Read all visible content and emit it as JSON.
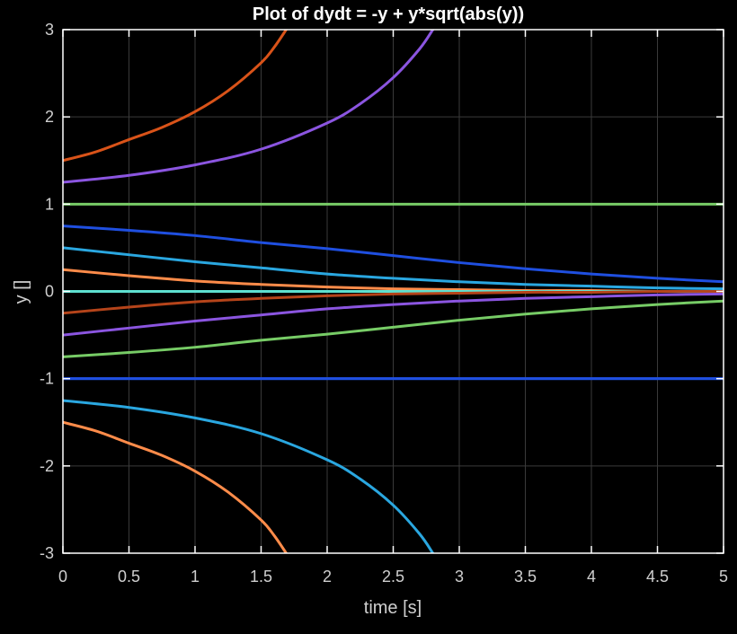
{
  "chart_data": {
    "type": "line",
    "title": "Plot of dydt = -y + y*sqrt(abs(y))",
    "xlabel": "time [s]",
    "ylabel": "y []",
    "xlim": [
      0,
      5
    ],
    "ylim": [
      -3,
      3
    ],
    "xticks": [
      "0",
      "0.5",
      "1",
      "1.5",
      "2",
      "2.5",
      "3",
      "3.5",
      "4",
      "4.5",
      "5"
    ],
    "yticks": [
      "3",
      "2",
      "1",
      "0",
      "-1",
      "-2",
      "-3"
    ],
    "grid": true,
    "background": "#000000",
    "axis_color": "#ffffff",
    "tick_color": "#cfcfcf",
    "grid_color": "#3a3a3a",
    "series": [
      {
        "color": "#1f4fe0",
        "x": [
          0,
          0.5,
          1,
          1.5,
          2,
          2.5,
          3,
          3.5,
          4,
          4.5,
          5
        ],
        "y": [
          -1,
          -1,
          -1,
          -1,
          -1,
          -1,
          -1,
          -1,
          -1,
          -1,
          -1
        ]
      },
      {
        "color": "#d95319",
        "x": [
          0,
          0.25,
          0.5,
          0.75,
          1,
          1.25,
          1.5,
          1.6,
          1.69
        ],
        "y": [
          1.5,
          1.6,
          1.74,
          1.88,
          2.06,
          2.3,
          2.62,
          2.8,
          3.0
        ]
      },
      {
        "color": "#8b55e0",
        "x": [
          0,
          0.5,
          1,
          1.5,
          2,
          2.25,
          2.5,
          2.7,
          2.8
        ],
        "y": [
          1.25,
          1.33,
          1.45,
          1.63,
          1.93,
          2.15,
          2.45,
          2.78,
          3.0
        ]
      },
      {
        "color": "#77cc66",
        "x": [
          0,
          0.5,
          1,
          1.5,
          2,
          2.5,
          3,
          3.5,
          4,
          4.5,
          5
        ],
        "y": [
          1,
          1,
          1,
          1,
          1,
          1,
          1,
          1,
          1,
          1,
          1
        ]
      },
      {
        "color": "#1f4fe0",
        "x": [
          0,
          0.5,
          1,
          1.5,
          2,
          2.5,
          3,
          3.5,
          4,
          4.5,
          5
        ],
        "y": [
          0.75,
          0.7,
          0.64,
          0.56,
          0.49,
          0.41,
          0.33,
          0.26,
          0.2,
          0.15,
          0.11
        ]
      },
      {
        "color": "#2aa7e0",
        "x": [
          0,
          0.5,
          1,
          1.5,
          2,
          2.5,
          3,
          3.5,
          4,
          4.5,
          5
        ],
        "y": [
          0.5,
          0.42,
          0.34,
          0.27,
          0.2,
          0.15,
          0.11,
          0.08,
          0.06,
          0.04,
          0.03
        ]
      },
      {
        "color": "#ff8c4a",
        "x": [
          0,
          0.5,
          1,
          1.5,
          2,
          2.5,
          3,
          3.5,
          4,
          4.5,
          5
        ],
        "y": [
          0.25,
          0.18,
          0.12,
          0.08,
          0.05,
          0.03,
          0.02,
          0.01,
          0.01,
          0.0,
          0.0
        ]
      },
      {
        "color": "#5ee0d0",
        "x": [
          0,
          0.5,
          1,
          1.5,
          2,
          2.5,
          3,
          3.5,
          4,
          4.5,
          5
        ],
        "y": [
          0,
          0,
          0,
          0,
          0,
          0,
          0,
          0,
          0,
          0,
          0
        ]
      },
      {
        "color": "#b5441a",
        "x": [
          0,
          0.5,
          1,
          1.5,
          2,
          2.5,
          3,
          3.5,
          4,
          4.5,
          5
        ],
        "y": [
          -0.25,
          -0.18,
          -0.12,
          -0.08,
          -0.05,
          -0.03,
          -0.02,
          -0.01,
          -0.01,
          0.0,
          0.0
        ]
      },
      {
        "color": "#8b55e0",
        "x": [
          0,
          0.5,
          1,
          1.5,
          2,
          2.5,
          3,
          3.5,
          4,
          4.5,
          5
        ],
        "y": [
          -0.5,
          -0.42,
          -0.34,
          -0.27,
          -0.2,
          -0.15,
          -0.11,
          -0.08,
          -0.06,
          -0.04,
          -0.03
        ]
      },
      {
        "color": "#77cc66",
        "x": [
          0,
          0.5,
          1,
          1.5,
          2,
          2.5,
          3,
          3.5,
          4,
          4.5,
          5
        ],
        "y": [
          -0.75,
          -0.7,
          -0.64,
          -0.56,
          -0.49,
          -0.41,
          -0.33,
          -0.26,
          -0.2,
          -0.15,
          -0.11
        ]
      },
      {
        "color": "#1f4fe0",
        "x": [
          0,
          0.5,
          1,
          1.5,
          2,
          2.5,
          3,
          3.5,
          4,
          4.5,
          5
        ],
        "y": [
          -1,
          -1,
          -1,
          -1,
          -1,
          -1,
          -1,
          -1,
          -1,
          -1,
          -1
        ]
      },
      {
        "color": "#2aa7e0",
        "x": [
          0,
          0.5,
          1,
          1.5,
          2,
          2.25,
          2.5,
          2.7,
          2.8
        ],
        "y": [
          -1.25,
          -1.33,
          -1.45,
          -1.63,
          -1.93,
          -2.15,
          -2.45,
          -2.78,
          -3.0
        ]
      },
      {
        "color": "#ff8c4a",
        "x": [
          0,
          0.25,
          0.5,
          0.75,
          1,
          1.25,
          1.5,
          1.6,
          1.69
        ],
        "y": [
          -1.5,
          -1.6,
          -1.74,
          -1.88,
          -2.06,
          -2.3,
          -2.62,
          -2.8,
          -3.0
        ]
      }
    ]
  }
}
